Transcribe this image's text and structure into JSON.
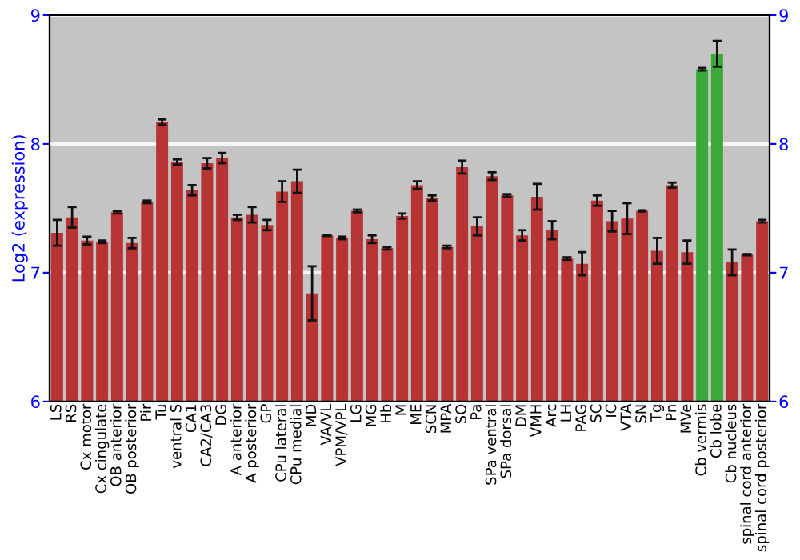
{
  "chart_data": {
    "type": "bar",
    "ylabel": "Log2 (expression)",
    "categories": [
      "LS",
      "RS",
      "Cx motor",
      "Cx cingulate",
      "OB anterior",
      "OB posterior",
      "Pir",
      "Tu",
      "ventral S",
      "CA1",
      "CA2/CA3",
      "DG",
      "A anterior",
      "A posterior",
      "GP",
      "CPu lateral",
      "CPu medial",
      "MD",
      "VA/VL",
      "VPM/VPL",
      "LG",
      "MG",
      "Hb",
      "M",
      "ME",
      "SCN",
      "MPA",
      "SO",
      "Pa",
      "SPa ventral",
      "SPa dorsal",
      "DM",
      "VMH",
      "Arc",
      "LH",
      "PAG",
      "SC",
      "IC",
      "VTA",
      "SN",
      "Tg",
      "Pn",
      "MVe",
      "Cb vermis",
      "Cb lobe",
      "Cb nucleus",
      "spinal cord anterior",
      "spinal cord posterior"
    ],
    "values": [
      7.31,
      7.43,
      7.25,
      7.24,
      7.47,
      7.23,
      7.55,
      8.17,
      7.86,
      7.64,
      7.85,
      7.89,
      7.43,
      7.45,
      7.37,
      7.63,
      7.71,
      6.84,
      7.29,
      7.27,
      7.48,
      7.26,
      7.19,
      7.44,
      7.68,
      7.58,
      7.2,
      7.82,
      7.36,
      7.75,
      7.6,
      7.29,
      7.59,
      7.33,
      7.11,
      7.07,
      7.56,
      7.4,
      7.42,
      7.48,
      7.17,
      7.68,
      7.16,
      8.58,
      8.7,
      7.08,
      7.14,
      7.4
    ],
    "errors": [
      0.1,
      0.08,
      0.03,
      0.01,
      0.01,
      0.04,
      0.01,
      0.02,
      0.02,
      0.04,
      0.04,
      0.04,
      0.02,
      0.06,
      0.04,
      0.08,
      0.09,
      0.21,
      0.005,
      0.01,
      0.01,
      0.03,
      0.01,
      0.02,
      0.03,
      0.02,
      0.01,
      0.05,
      0.07,
      0.03,
      0.01,
      0.04,
      0.1,
      0.07,
      0.01,
      0.09,
      0.04,
      0.08,
      0.12,
      0.005,
      0.1,
      0.02,
      0.09,
      0.01,
      0.1,
      0.1,
      0.005,
      0.01
    ],
    "colors": [
      "#b83434",
      "#b83434",
      "#b83434",
      "#b83434",
      "#b83434",
      "#b83434",
      "#b83434",
      "#b83434",
      "#b83434",
      "#b83434",
      "#b83434",
      "#b83434",
      "#b83434",
      "#b83434",
      "#b83434",
      "#b83434",
      "#b83434",
      "#b83434",
      "#b83434",
      "#b83434",
      "#b83434",
      "#b83434",
      "#b83434",
      "#b83434",
      "#b83434",
      "#b83434",
      "#b83434",
      "#b83434",
      "#b83434",
      "#b83434",
      "#b83434",
      "#b83434",
      "#b83434",
      "#b83434",
      "#b83434",
      "#b83434",
      "#b83434",
      "#b83434",
      "#b83434",
      "#b83434",
      "#b83434",
      "#b83434",
      "#b83434",
      "#3aa83a",
      "#3aa83a",
      "#b83434",
      "#b83434",
      "#b83434"
    ],
    "ylim": [
      6,
      9
    ],
    "yticks": [
      6,
      7,
      8,
      9
    ],
    "y2lim": [
      6,
      9
    ],
    "y2ticks": [
      6,
      7,
      8,
      9
    ],
    "grid": "y"
  }
}
